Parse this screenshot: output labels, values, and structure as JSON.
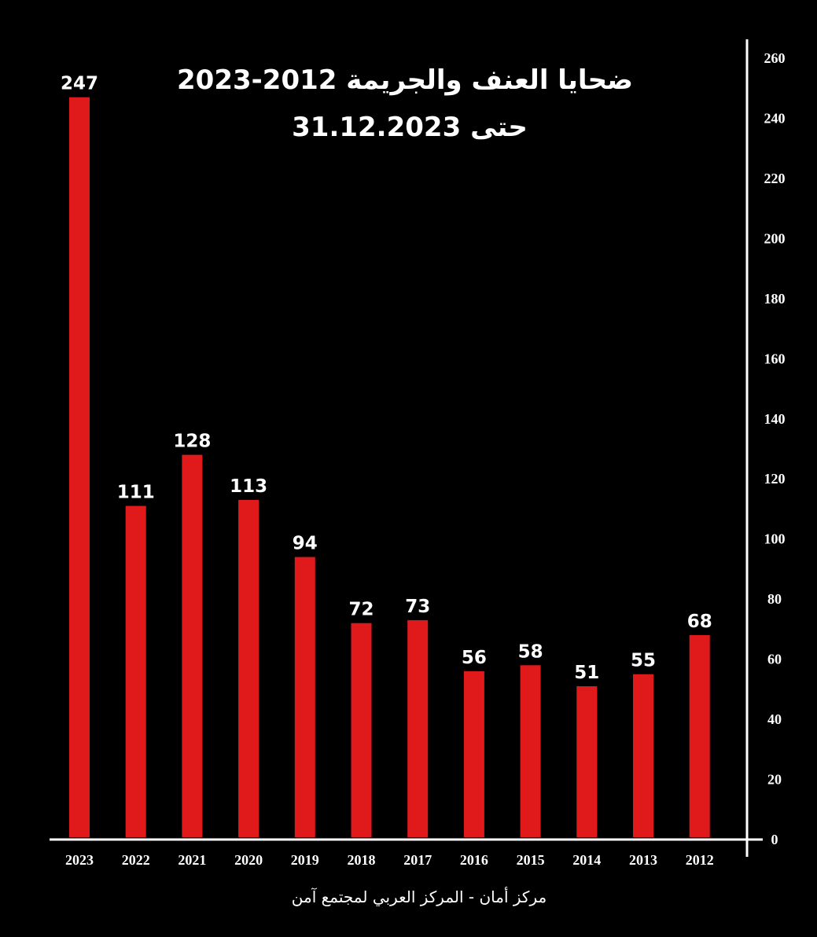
{
  "chart_data": {
    "type": "bar",
    "title": "ضحايا العنف والجريمة 2012-2023",
    "subtitle": "حتى 31.12.2023",
    "categories": [
      "2023",
      "2022",
      "2021",
      "2020",
      "2019",
      "2018",
      "2017",
      "2016",
      "2015",
      "2014",
      "2013",
      "2012"
    ],
    "values": [
      247,
      111,
      128,
      113,
      94,
      72,
      73,
      56,
      58,
      51,
      55,
      68
    ],
    "ylim": [
      0,
      260
    ],
    "yticks": [
      0,
      20,
      40,
      60,
      80,
      100,
      120,
      140,
      160,
      180,
      200,
      220,
      240,
      260
    ],
    "y_axis_side": "right",
    "grid": false,
    "legend": "none",
    "source": "مركز أمان  - المركز العربي لمجتمع آمن",
    "colors": {
      "background": "#000000",
      "bar": "#e0191b",
      "text": "#ffffff",
      "axis": "#ffffff"
    }
  }
}
